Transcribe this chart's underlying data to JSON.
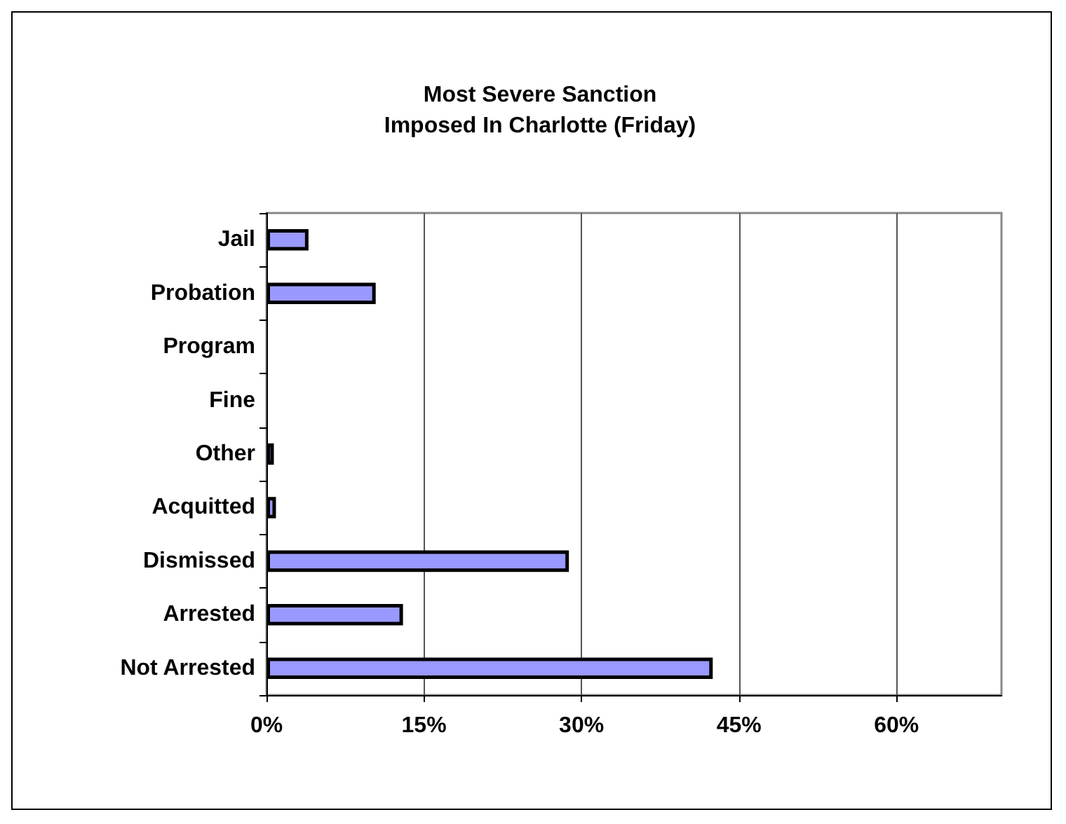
{
  "chart_data": {
    "type": "bar",
    "orientation": "horizontal",
    "title": "Most Severe Sanction\nImposed In Charlotte (Friday)",
    "categories": [
      "Jail",
      "Probation",
      "Program",
      "Fine",
      "Other",
      "Acquitted",
      "Dismissed",
      "Arrested",
      "Not Arrested"
    ],
    "values": [
      4.0,
      10.4,
      0,
      0,
      0.7,
      0.9,
      28.8,
      13.0,
      42.5
    ],
    "color": "#9999ff",
    "xlim": [
      0,
      70
    ],
    "xticks": [
      {
        "value": 0,
        "label": "0%"
      },
      {
        "value": 15,
        "label": "15%"
      },
      {
        "value": 30,
        "label": "30%"
      },
      {
        "value": 45,
        "label": "45%"
      },
      {
        "value": 60,
        "label": "60%"
      }
    ],
    "grid": "x"
  }
}
